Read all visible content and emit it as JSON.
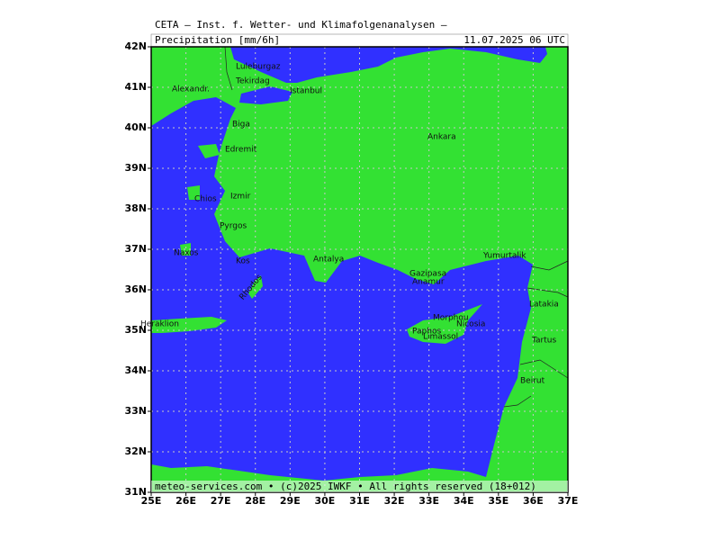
{
  "header": {
    "title": "CETA — Inst. f. Wetter- und Klimafolgenanalysen —",
    "product": "Precipitation [mm/6h]",
    "valid": "11.07.2025 06 UTC"
  },
  "footer": "meteo-services.com • (c)2025 IWKF • All rights reserved (18+012)",
  "lat_labels": [
    "42N",
    "41N",
    "40N",
    "39N",
    "38N",
    "37N",
    "36N",
    "35N",
    "34N",
    "33N",
    "32N",
    "31N"
  ],
  "lon_labels": [
    "25E",
    "26E",
    "27E",
    "28E",
    "29E",
    "30E",
    "31E",
    "32E",
    "33E",
    "34E",
    "35E",
    "36E",
    "37E"
  ],
  "cities": [
    "Luleburgaz",
    "Tekirdag",
    "Istanbul",
    "Alexandr.",
    "Biga",
    "Edremit",
    "Chios",
    "Izmir",
    "Pyrgos",
    "Ankara",
    "Naxos",
    "Kos",
    "Rhodos",
    "Antalya",
    "Gazipasa",
    "Anamur",
    "Yumurtalik",
    "Latakia",
    "Tartus",
    "Beirut",
    "Heraklion",
    "Morphou",
    "Nicosia",
    "Paphos",
    "Limassol"
  ]
}
